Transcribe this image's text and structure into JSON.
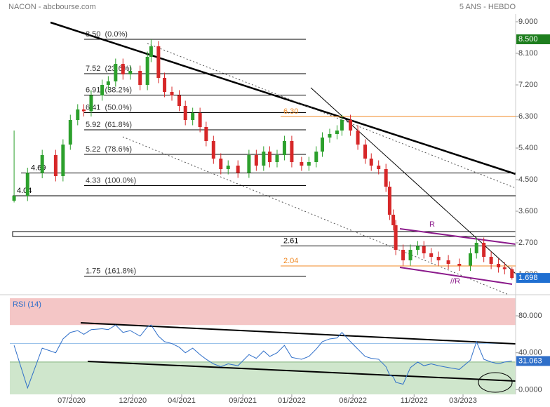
{
  "header": {
    "title": "NACON - abcbourse.com",
    "period": "5 ANS - HEBDO"
  },
  "chart_data": [
    {
      "type": "candlestick",
      "x": [
        1.3,
        2.4,
        3.6,
        4.7,
        5.3,
        5.9,
        6.5,
        7.0,
        7.6,
        8.5,
        9.0,
        9.6,
        10.2,
        10.8,
        11.6,
        12.2,
        12.5,
        13.1,
        13.6,
        14.2,
        14.8,
        15.3,
        15.9,
        16.5,
        17.0,
        17.6,
        18.2,
        18.8,
        19.6,
        20.5,
        21.1,
        21.7,
        22.2,
        22.8,
        23.4,
        24.0,
        24.8,
        25.4,
        26.0,
        26.5,
        27.1,
        27.7,
        28.1,
        28.8,
        29.4,
        30.0,
        30.5,
        31.1,
        31.7,
        32.0,
        32.3,
        32.5,
        33.1,
        33.7,
        34.3,
        34.8,
        35.4,
        36.0,
        36.8,
        37.7,
        38.6,
        39.1,
        39.7,
        40.3,
        40.9,
        41.4,
        42.0
      ],
      "open": [
        3.9,
        4.04,
        4.69,
        5.2,
        4.6,
        5.5,
        6.2,
        6.5,
        6.45,
        6.9,
        7.2,
        7.3,
        7.8,
        7.5,
        7.6,
        7.2,
        8.0,
        8.3,
        7.4,
        7.0,
        6.9,
        6.6,
        6.2,
        6.4,
        6.0,
        5.6,
        5.1,
        4.8,
        4.9,
        4.7,
        5.2,
        4.9,
        5.3,
        5.0,
        5.2,
        5.6,
        5.0,
        4.9,
        5.0,
        5.3,
        5.7,
        5.8,
        5.9,
        6.2,
        5.9,
        5.5,
        5.1,
        4.9,
        4.8,
        4.3,
        3.5,
        3.2,
        2.5,
        2.2,
        2.5,
        2.6,
        2.4,
        2.3,
        2.2,
        2.1,
        2.05,
        2.4,
        2.7,
        2.3,
        2.1,
        2.0,
        1.95
      ],
      "high": [
        5.9,
        4.84,
        5.35,
        5.35,
        5.65,
        6.35,
        6.65,
        6.65,
        7.05,
        7.35,
        7.45,
        7.95,
        7.95,
        7.75,
        7.75,
        8.15,
        8.5,
        8.45,
        7.55,
        7.15,
        7.05,
        6.75,
        6.55,
        6.55,
        6.15,
        5.75,
        5.25,
        5.05,
        5.05,
        5.35,
        5.35,
        5.45,
        5.45,
        5.35,
        5.75,
        5.75,
        5.15,
        5.15,
        5.45,
        5.85,
        5.95,
        6.05,
        6.35,
        6.35,
        6.05,
        5.65,
        5.25,
        5.05,
        4.95,
        4.45,
        3.65,
        3.35,
        2.65,
        2.65,
        2.75,
        2.75,
        2.55,
        2.45,
        2.35,
        2.25,
        2.55,
        2.85,
        2.85,
        2.45,
        2.25,
        2.15,
        2.0
      ],
      "low": [
        3.85,
        3.89,
        4.54,
        4.45,
        4.45,
        5.35,
        6.05,
        6.3,
        6.3,
        6.75,
        7.05,
        7.15,
        7.35,
        7.35,
        7.05,
        7.05,
        7.85,
        7.25,
        6.85,
        6.75,
        6.45,
        6.05,
        6.05,
        5.85,
        5.45,
        4.95,
        4.65,
        4.65,
        4.55,
        4.55,
        4.75,
        4.75,
        4.85,
        4.85,
        5.05,
        4.85,
        4.75,
        4.75,
        4.85,
        5.15,
        5.55,
        5.65,
        5.75,
        5.75,
        5.35,
        4.95,
        4.75,
        4.65,
        4.15,
        3.35,
        3.05,
        2.35,
        2.05,
        2.05,
        2.35,
        2.25,
        2.15,
        2.05,
        1.95,
        1.9,
        1.9,
        2.25,
        2.15,
        1.95,
        1.85,
        1.8,
        1.65
      ],
      "close": [
        4.04,
        4.69,
        5.2,
        4.6,
        5.5,
        6.2,
        6.5,
        6.45,
        6.9,
        7.2,
        7.3,
        7.8,
        7.5,
        7.6,
        7.2,
        8.0,
        8.3,
        7.4,
        7.0,
        6.9,
        6.6,
        6.2,
        6.4,
        6.0,
        5.6,
        5.1,
        4.8,
        4.9,
        4.7,
        5.2,
        4.9,
        5.3,
        5.0,
        5.2,
        5.6,
        5.0,
        4.9,
        5.0,
        5.3,
        5.7,
        5.8,
        5.9,
        6.2,
        5.9,
        5.5,
        5.1,
        4.9,
        4.8,
        4.3,
        3.5,
        3.2,
        2.5,
        2.2,
        2.5,
        2.6,
        2.4,
        2.3,
        2.2,
        2.1,
        2.05,
        2.4,
        2.7,
        2.3,
        2.1,
        2.0,
        1.95,
        1.698
      ],
      "up_color": "#2ca02c",
      "down_color": "#d62728",
      "xlim": [
        1.18,
        42.3
      ],
      "ylim": [
        1.26,
        9.62
      ],
      "yticks": [
        {
          "value": 9,
          "label": "9.000"
        },
        {
          "value": 8.1,
          "label": "8.100"
        },
        {
          "value": 7.2,
          "label": "7.200"
        },
        {
          "value": 6.3,
          "label": "6.300"
        },
        {
          "value": 5.4,
          "label": "5.400"
        },
        {
          "value": 4.5,
          "label": "4.500"
        },
        {
          "value": 3.6,
          "label": "3.600"
        },
        {
          "value": 2.7,
          "label": "2.700"
        },
        {
          "value": 1.8,
          "label": "1.800"
        }
      ],
      "price_badges": [
        {
          "value": 8.5,
          "label": "8.500",
          "color": "#1e7e1e"
        },
        {
          "value": 1.698,
          "label": "1.698",
          "color": "#1f6fd1"
        }
      ],
      "fibonacci": [
        {
          "value": 8.5,
          "label": "8.50  (0.0%)"
        },
        {
          "value": 7.52,
          "label": "7.52  (23.6%)"
        },
        {
          "value": 6.91,
          "label": "6.91  (38.2%)"
        },
        {
          "value": 6.41,
          "label": "6.41  (50.0%)"
        },
        {
          "value": 5.92,
          "label": "5.92  (61.8%)"
        },
        {
          "value": 5.22,
          "label": "5.22  (78.6%)"
        },
        {
          "value": 4.33,
          "label": "4.33  (100.0%)"
        },
        {
          "value": 1.75,
          "label": "1.75  (161.8%)"
        }
      ],
      "levels": [
        {
          "value": 4.69,
          "label": "4.69",
          "color": "#000000"
        },
        {
          "value": 4.04,
          "label": "4.04",
          "color": "#000000"
        },
        {
          "value": 6.3,
          "label": "6.30",
          "color": "#f08a24"
        },
        {
          "value": 2.61,
          "label": "2.61",
          "color": "#000000"
        },
        {
          "value": 2.04,
          "label": "2.04",
          "color": "#f08a24"
        }
      ],
      "annotations": [
        "R",
        "//R"
      ]
    },
    {
      "type": "line",
      "title": "RSI (14)",
      "x": [
        1.3,
        2.4,
        3.6,
        4.7,
        5.3,
        5.9,
        6.5,
        7.0,
        7.6,
        8.5,
        9.0,
        9.6,
        10.2,
        10.8,
        11.6,
        12.2,
        12.5,
        13.1,
        13.6,
        14.2,
        14.8,
        15.3,
        15.9,
        16.5,
        17.0,
        17.6,
        18.2,
        18.8,
        19.6,
        20.5,
        21.1,
        21.7,
        22.2,
        22.8,
        23.4,
        24.0,
        24.8,
        25.4,
        26.0,
        26.5,
        27.1,
        27.7,
        28.1,
        28.8,
        29.4,
        30.0,
        30.5,
        31.1,
        31.7,
        32.0,
        32.3,
        32.5,
        33.1,
        33.7,
        34.3,
        34.8,
        35.4,
        36.0,
        36.8,
        37.7,
        38.6,
        39.1,
        39.7,
        40.3,
        40.9,
        41.4,
        42.0
      ],
      "series": [
        {
          "name": "RSI (14)",
          "color": "#2f6fc9",
          "values": [
            48,
            2,
            45,
            40,
            55,
            62,
            64,
            60,
            65,
            66,
            65,
            70,
            62,
            64,
            58,
            68,
            70,
            58,
            52,
            50,
            46,
            40,
            45,
            38,
            33,
            28,
            25,
            28,
            26,
            38,
            34,
            42,
            36,
            40,
            48,
            35,
            33,
            36,
            44,
            52,
            55,
            56,
            62,
            52,
            44,
            36,
            34,
            33,
            25,
            16,
            14,
            8,
            6,
            24,
            30,
            26,
            28,
            26,
            24,
            22,
            32,
            52,
            33,
            30,
            28,
            30,
            31.063
          ],
          "value_labels": [
            null,
            null,
            null,
            null,
            null,
            null,
            null,
            null,
            null,
            null,
            null,
            null,
            null,
            null,
            null,
            null,
            null,
            null,
            null,
            null,
            null,
            null,
            null,
            null,
            null,
            null,
            null,
            null,
            null,
            null,
            null,
            null,
            null,
            null,
            null,
            null,
            null,
            null,
            null,
            null,
            null,
            null,
            null,
            null,
            null,
            null,
            null,
            null,
            null,
            null,
            null,
            null,
            null,
            null,
            null,
            null,
            null,
            null,
            null,
            null,
            null,
            null,
            null,
            null,
            null,
            null,
            "31.063"
          ]
        }
      ],
      "xlim": [
        1.18,
        42.3
      ],
      "ylim": [
        -5,
        99
      ],
      "yticks": [
        {
          "value": 80,
          "label": "80.000"
        },
        {
          "value": 40,
          "label": "40.000"
        },
        {
          "value": 0,
          "label": "0.0000"
        }
      ],
      "zones": [
        {
          "from": 70,
          "to": 99,
          "color": "#f4c6c6"
        },
        {
          "from": -5,
          "to": 30,
          "color": "#cfe6cc"
        }
      ],
      "midline": 50,
      "xticks": [
        {
          "value": 6,
          "label": "07/2020"
        },
        {
          "value": 11,
          "label": "12/2020"
        },
        {
          "value": 15,
          "label": "04/2021"
        },
        {
          "value": 20,
          "label": "09/2021"
        },
        {
          "value": 24,
          "label": "01/2022"
        },
        {
          "value": 29,
          "label": "06/2022"
        },
        {
          "value": 34,
          "label": "11/2022"
        },
        {
          "value": 38,
          "label": "03/2023"
        }
      ]
    }
  ]
}
